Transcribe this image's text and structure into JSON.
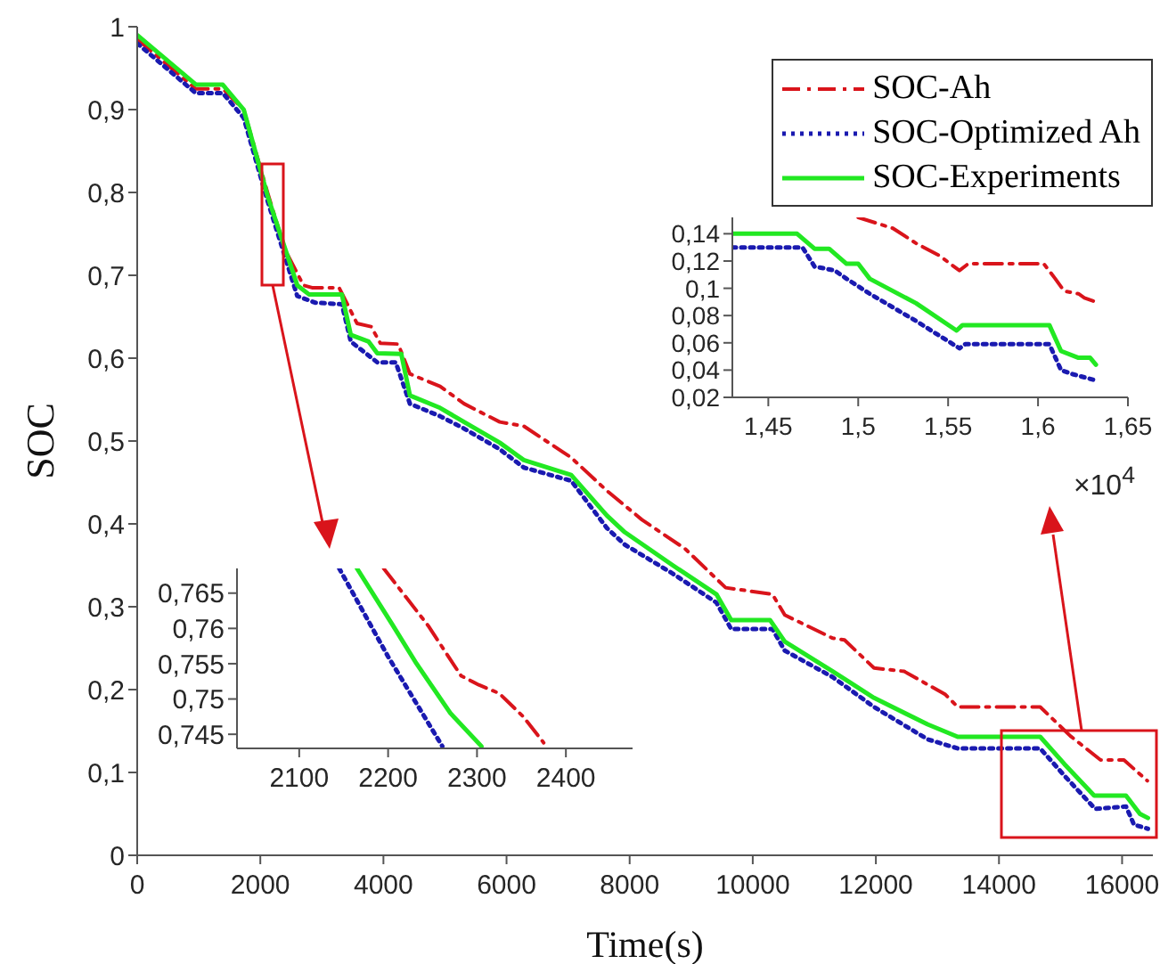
{
  "chart_data": [
    {
      "type": "line",
      "xlabel": "Time(s)",
      "ylabel": "SOC",
      "xlim": [
        0,
        16500
      ],
      "xticks": [
        0,
        2000,
        4000,
        6000,
        8000,
        10000,
        12000,
        14000,
        16000
      ],
      "ylim": [
        0,
        1
      ],
      "yticks": [
        0,
        {
          "value": 0.1,
          "label": "0,1"
        },
        {
          "value": 0.2,
          "label": "0,2"
        },
        {
          "value": 0.3,
          "label": "0,3"
        },
        {
          "value": 0.4,
          "label": "0,4"
        },
        {
          "value": 0.5,
          "label": "0,5"
        },
        {
          "value": 0.6,
          "label": "0,6"
        },
        {
          "value": 0.7,
          "label": "0,7"
        },
        {
          "value": 0.8,
          "label": "0,8"
        },
        {
          "value": 0.9,
          "label": "0,9"
        },
        1
      ],
      "legend": "top right",
      "series": [
        {
          "name": "SOC-Ah",
          "color": "#d9141b",
          "line_style": "dashed",
          "x": [
            0,
            950,
            1390,
            1730,
            2117,
            2400,
            2700,
            2840,
            3280,
            3570,
            3800,
            3950,
            4240,
            4430,
            4920,
            5310,
            5890,
            6280,
            7050,
            7630,
            8200,
            8900,
            9560,
            10320,
            10520,
            11300,
            11490,
            11970,
            12460,
            13130,
            13330,
            14670,
            15160,
            15650,
            16030,
            16410
          ],
          "values": [
            0.985,
            0.925,
            0.925,
            0.9,
            0.8,
            0.731,
            0.688,
            0.685,
            0.685,
            0.642,
            0.638,
            0.618,
            0.617,
            0.581,
            0.566,
            0.545,
            0.523,
            0.518,
            0.48,
            0.44,
            0.405,
            0.37,
            0.323,
            0.315,
            0.29,
            0.262,
            0.26,
            0.226,
            0.222,
            0.194,
            0.179,
            0.179,
            0.144,
            0.115,
            0.115,
            0.09
          ]
        },
        {
          "name": "SOC-Optimized Ah",
          "color": "#1a1ab0",
          "line_style": "dotted",
          "x": [
            0,
            950,
            1390,
            1730,
            2117,
            2600,
            2890,
            3325,
            3470,
            3900,
            4200,
            4430,
            4920,
            5310,
            5890,
            6280,
            7050,
            7630,
            7920,
            8700,
            9410,
            9650,
            10320,
            10520,
            11300,
            11970,
            12840,
            13330,
            14670,
            15064,
            15563,
            16063,
            16193,
            16420
          ],
          "values": [
            0.98,
            0.92,
            0.92,
            0.89,
            0.79,
            0.675,
            0.667,
            0.665,
            0.62,
            0.595,
            0.595,
            0.545,
            0.53,
            0.515,
            0.49,
            0.468,
            0.452,
            0.395,
            0.375,
            0.34,
            0.305,
            0.273,
            0.273,
            0.247,
            0.215,
            0.179,
            0.14,
            0.129,
            0.129,
            0.096,
            0.056,
            0.059,
            0.037,
            0.032
          ]
        },
        {
          "name": "SOC-Experiments",
          "color": "#22e822",
          "line_style": "solid",
          "x": [
            0,
            957,
            1390,
            1730,
            2117,
            2600,
            2790,
            3325,
            3470,
            3760,
            3900,
            4290,
            4430,
            4920,
            5310,
            5890,
            6280,
            7050,
            7630,
            7920,
            8700,
            9410,
            9650,
            10280,
            10520,
            11300,
            11970,
            12840,
            13330,
            14670,
            15064,
            15547,
            16063,
            16290,
            16420
          ],
          "values": [
            0.99,
            0.93,
            0.93,
            0.9,
            0.796,
            0.688,
            0.677,
            0.677,
            0.628,
            0.62,
            0.606,
            0.605,
            0.555,
            0.54,
            0.523,
            0.498,
            0.477,
            0.459,
            0.41,
            0.39,
            0.35,
            0.315,
            0.284,
            0.284,
            0.258,
            0.222,
            0.19,
            0.158,
            0.143,
            0.143,
            0.11,
            0.072,
            0.072,
            0.05,
            0.045
          ]
        }
      ]
    },
    {
      "type": "line",
      "xlim": [
        2030,
        2475
      ],
      "xticks": [
        2100,
        2200,
        2300,
        2400
      ],
      "ylim": [
        0.743,
        0.7685
      ],
      "yticks": [
        {
          "value": 0.745,
          "label": "0,745"
        },
        {
          "value": 0.75,
          "label": "0,75"
        },
        {
          "value": 0.755,
          "label": "0,755"
        },
        {
          "value": 0.76,
          "label": "0,76"
        },
        {
          "value": 0.765,
          "label": "0,765"
        }
      ],
      "series": [
        {
          "color": "#d9141b",
          "line_style": "dashed",
          "x": [
            2195,
            2245,
            2282,
            2302,
            2325,
            2352,
            2375
          ],
          "values": [
            0.7685,
            0.7604,
            0.7533,
            0.752,
            0.7508,
            0.7475,
            0.7438
          ]
        },
        {
          "color": "#1a1ab0",
          "line_style": "dotted",
          "x": [
            2145,
            2200,
            2261
          ],
          "values": [
            0.7685,
            0.756,
            0.7433
          ]
        },
        {
          "color": "#22e822",
          "line_style": "solid",
          "x": [
            2165,
            2205,
            2232,
            2270,
            2305
          ],
          "values": [
            0.7685,
            0.7605,
            0.755,
            0.748,
            0.7433
          ]
        }
      ]
    },
    {
      "type": "line",
      "xlim": [
        1.43,
        1.65
      ],
      "xticks": [
        {
          "value": 1.45,
          "label": "1,45"
        },
        {
          "value": 1.5,
          "label": "1,5"
        },
        {
          "value": 1.55,
          "label": "1,55"
        },
        {
          "value": 1.6,
          "label": "1,6"
        },
        {
          "value": 1.65,
          "label": "1,65"
        }
      ],
      "ylim": [
        0.02,
        0.152
      ],
      "yticks": [
        {
          "value": 0.02,
          "label": "0,02"
        },
        {
          "value": 0.04,
          "label": "0,04"
        },
        {
          "value": 0.06,
          "label": "0,06"
        },
        {
          "value": 0.08,
          "label": "0,08"
        },
        {
          "value": 0.1,
          "label": "0,1"
        },
        {
          "value": 0.12,
          "label": "0,12"
        },
        {
          "value": 0.14,
          "label": "0,14"
        }
      ],
      "annotations": [
        "×10$^{4}$"
      ],
      "series": [
        {
          "color": "#d9141b",
          "line_style": "dashed",
          "x": [
            1.5,
            1.5193,
            1.5322,
            1.5451,
            1.5563,
            1.5612,
            1.6032,
            1.6096,
            1.6145,
            1.6225,
            1.6258,
            1.6322
          ],
          "values": [
            0.152,
            0.144,
            0.133,
            0.124,
            0.113,
            0.118,
            0.118,
            0.107,
            0.098,
            0.096,
            0.093,
            0.09
          ]
        },
        {
          "color": "#1a1ab0",
          "line_style": "dotted",
          "x": [
            1.43,
            1.469,
            1.4757,
            1.487,
            1.4935,
            1.5064,
            1.5322,
            1.5563,
            1.5595,
            1.6063,
            1.6128,
            1.6193,
            1.6306
          ],
          "values": [
            0.13,
            0.13,
            0.116,
            0.113,
            0.107,
            0.096,
            0.076,
            0.056,
            0.059,
            0.059,
            0.04,
            0.037,
            0.033
          ]
        },
        {
          "color": "#22e822",
          "line_style": "solid",
          "x": [
            1.43,
            1.466,
            1.4757,
            1.4838,
            1.4935,
            1.5,
            1.5064,
            1.5322,
            1.5547,
            1.558,
            1.6063,
            1.6128,
            1.6225,
            1.629,
            1.6322
          ],
          "values": [
            0.14,
            0.14,
            0.129,
            0.129,
            0.118,
            0.118,
            0.107,
            0.089,
            0.069,
            0.073,
            0.073,
            0.054,
            0.049,
            0.049,
            0.044
          ]
        }
      ]
    }
  ]
}
